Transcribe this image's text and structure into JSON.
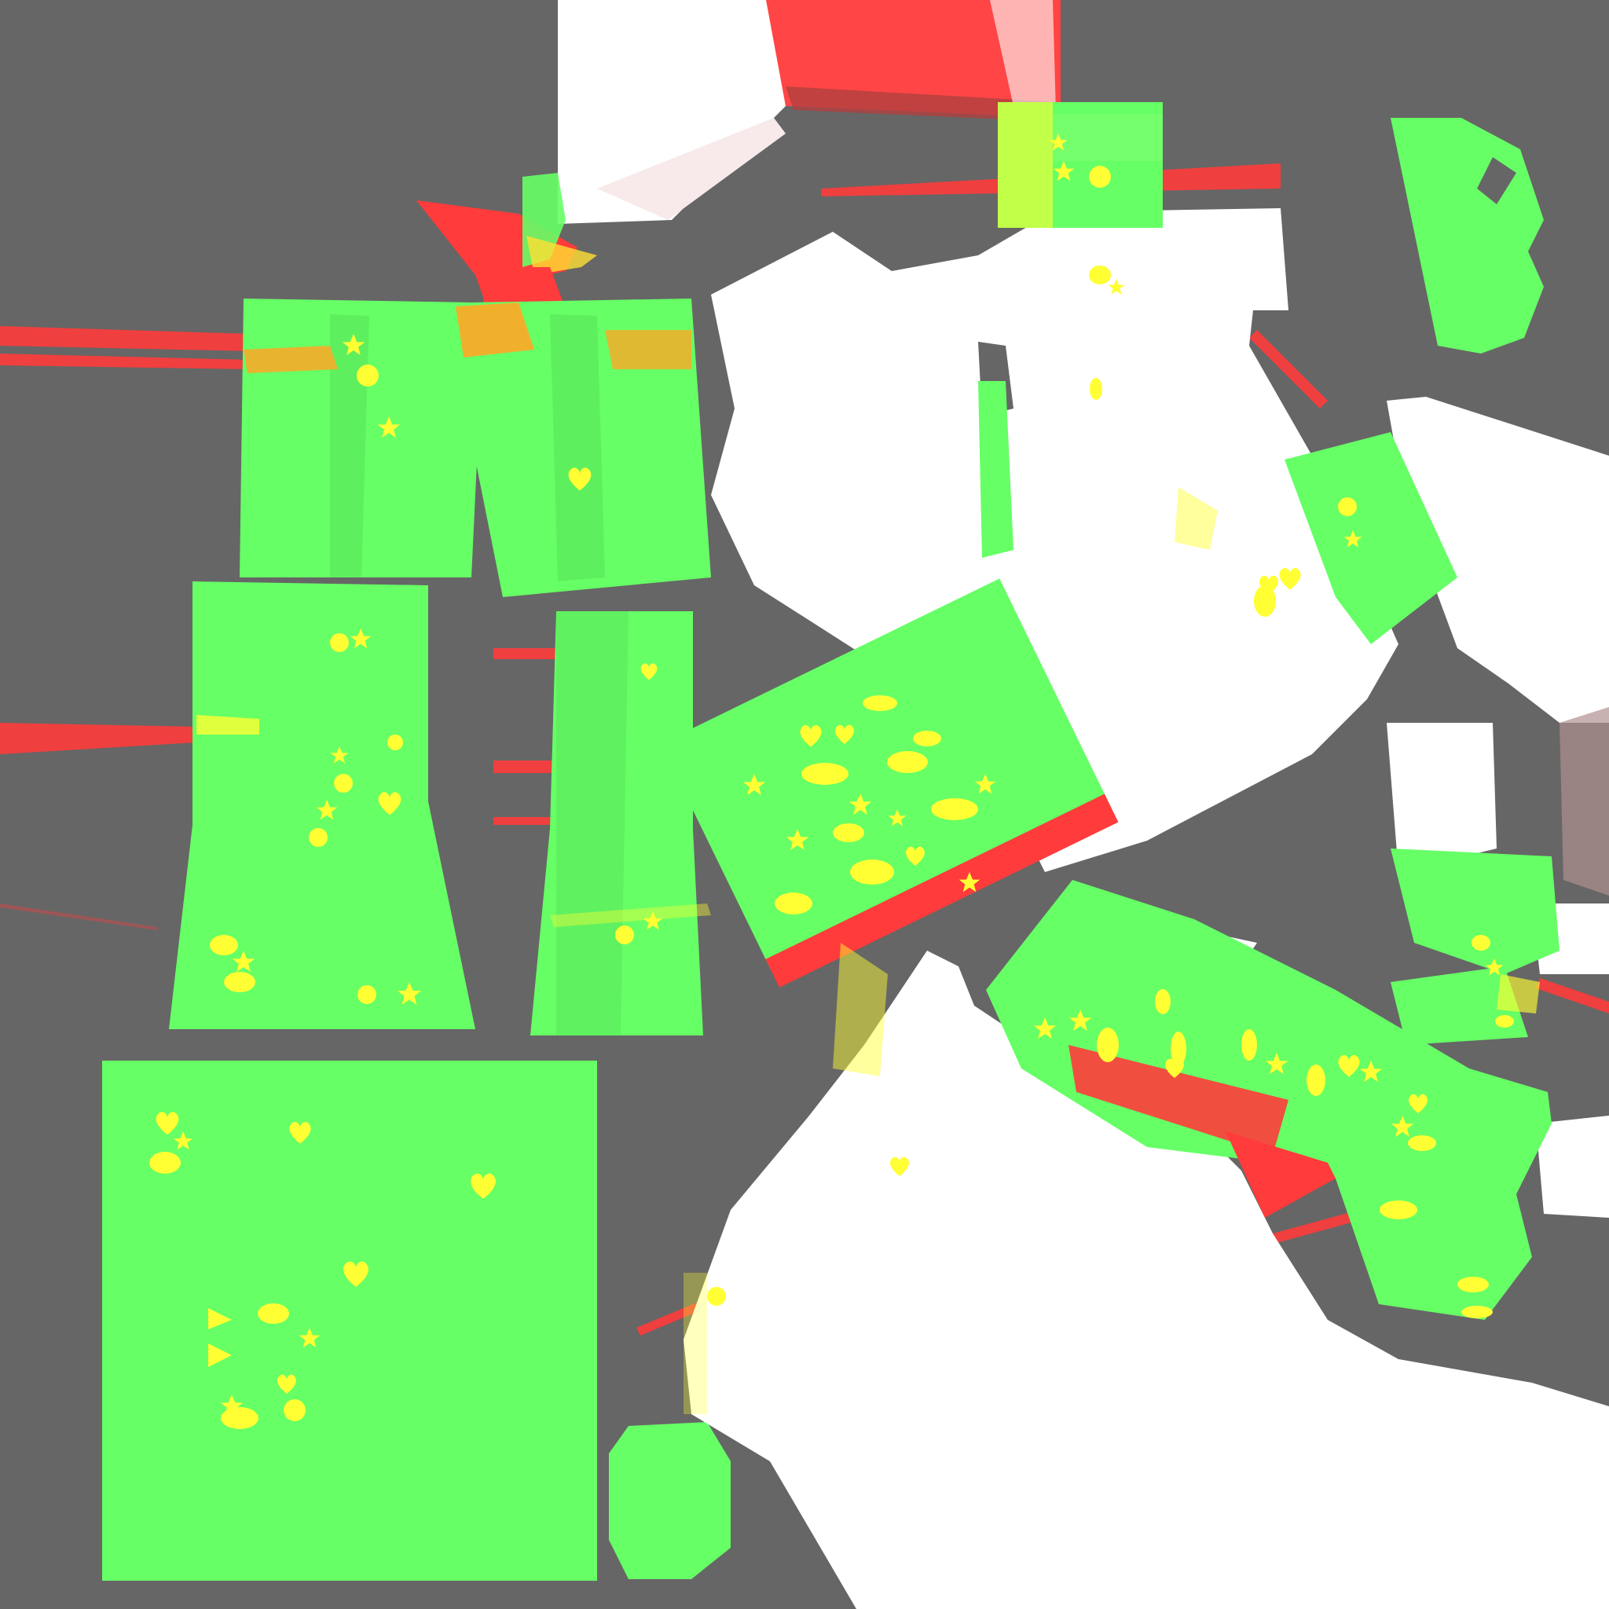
{
  "texture": {
    "colors": {
      "background": "#666666",
      "fabric_green": "#66ff66",
      "fabric_shade": "#55e655",
      "white": "#ffffff",
      "red": "#ff3b3b",
      "yellow": "#ffff33",
      "orange": "#ffa726"
    },
    "pieces": [
      "shorts-front-left",
      "shorts-front-right",
      "leg-left",
      "leg-right",
      "back-panel",
      "pocket-round",
      "sleeve-left",
      "sleeve-right",
      "collar-top",
      "side-strip",
      "cuff-right",
      "cuff-bottom",
      "shirt-white-upper",
      "shirt-white-lower",
      "shirt-white-right"
    ],
    "pattern_shapes": [
      "star",
      "heart",
      "dot"
    ]
  }
}
